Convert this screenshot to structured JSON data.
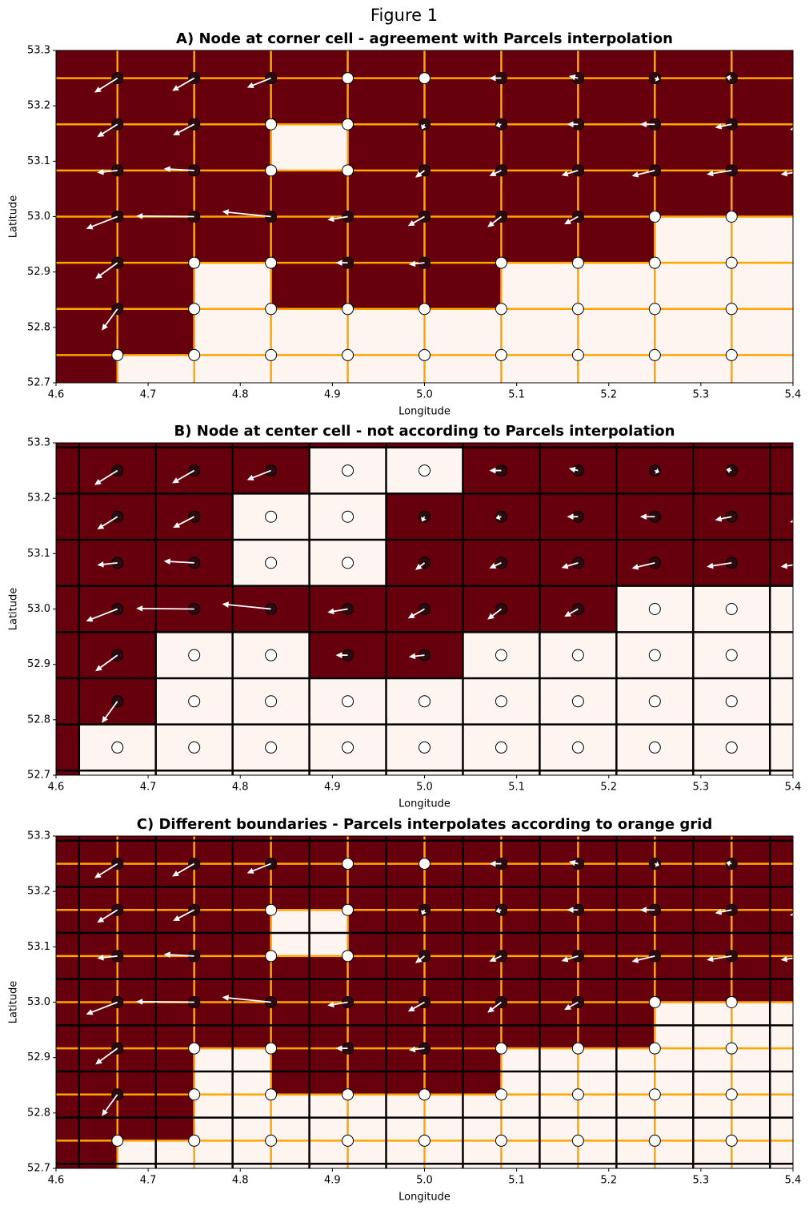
{
  "suptitle": "Figure 1",
  "field": {
    "lon": [
      4.583333,
      4.666667,
      4.75,
      4.833333,
      4.916667,
      5.0,
      5.083333,
      5.166667,
      5.25,
      5.333333,
      5.416667
    ],
    "lat": [
      52.666667,
      52.75,
      52.833333,
      52.916667,
      53.0,
      53.083333,
      53.166667,
      53.25,
      53.333333
    ],
    "land": [
      [
        0,
        1,
        1,
        1,
        1,
        1,
        1,
        1,
        1,
        1,
        1
      ],
      [
        0,
        1,
        1,
        1,
        1,
        1,
        1,
        1,
        1,
        1,
        1
      ],
      [
        0,
        0,
        1,
        1,
        1,
        1,
        1,
        1,
        1,
        1,
        1
      ],
      [
        0,
        0,
        1,
        1,
        0,
        0,
        1,
        1,
        1,
        1,
        1
      ],
      [
        0,
        0,
        0,
        0,
        0,
        0,
        0,
        0,
        1,
        1,
        1
      ],
      [
        0,
        0,
        0,
        1,
        1,
        0,
        0,
        0,
        0,
        0,
        0
      ],
      [
        0,
        0,
        0,
        1,
        1,
        0,
        0,
        0,
        0,
        0,
        0
      ],
      [
        0,
        0,
        0,
        0,
        1,
        1,
        0,
        0,
        0,
        0,
        0
      ],
      [
        0,
        0,
        0,
        0,
        0,
        0,
        0,
        0,
        0,
        0,
        0
      ]
    ],
    "u": [
      [
        0,
        0,
        0,
        0,
        0,
        0,
        0,
        0,
        0,
        0,
        0
      ],
      [
        0,
        0,
        0,
        0,
        0,
        0,
        0,
        0,
        0,
        0,
        0
      ],
      [
        0,
        -0.017,
        0,
        0,
        0,
        0,
        0,
        0,
        0,
        0,
        0
      ],
      [
        0,
        -0.024,
        0,
        0,
        -0.013,
        -0.017,
        0,
        0,
        0,
        0,
        0
      ],
      [
        0,
        -0.034,
        -0.063,
        -0.053,
        -0.022,
        -0.018,
        -0.015,
        -0.015,
        0,
        0,
        0
      ],
      [
        0,
        -0.022,
        -0.033,
        0,
        0,
        -0.01,
        -0.013,
        -0.018,
        -0.025,
        -0.027,
        -0.03
      ],
      [
        0,
        -0.022,
        -0.023,
        0,
        0,
        -0.003,
        -0.006,
        -0.012,
        -0.016,
        -0.018,
        -0.02
      ],
      [
        0,
        -0.025,
        -0.024,
        -0.026,
        0,
        0,
        -0.013,
        -0.01,
        0.005,
        -0.006,
        -0.005
      ],
      [
        0,
        0,
        0,
        0,
        0,
        0,
        0,
        0,
        0,
        0,
        0
      ]
    ],
    "v": [
      [
        0,
        0,
        0,
        0,
        0,
        0,
        0,
        0,
        0,
        0,
        0
      ],
      [
        0,
        0,
        0,
        0,
        0,
        0,
        0,
        0,
        0,
        0,
        0
      ],
      [
        0,
        -0.039,
        0,
        0,
        0,
        0,
        0,
        0,
        0,
        0,
        0
      ],
      [
        0,
        -0.029,
        0,
        0,
        0,
        -0.003,
        0,
        0,
        0,
        0,
        0
      ],
      [
        0,
        -0.022,
        0.001,
        0.009,
        -0.006,
        -0.017,
        -0.019,
        -0.014,
        0,
        0,
        0
      ],
      [
        0,
        -0.004,
        0.003,
        0,
        0,
        -0.013,
        -0.01,
        -0.009,
        -0.01,
        -0.007,
        -0.007
      ],
      [
        0,
        -0.023,
        -0.02,
        0,
        0,
        -0.009,
        -0.003,
        0,
        0,
        -0.006,
        -0.01
      ],
      [
        0,
        -0.026,
        -0.023,
        -0.017,
        0,
        0,
        0,
        0.004,
        -0.003,
        0.002,
        0
      ],
      [
        0,
        0,
        0,
        0,
        0,
        0,
        0,
        0,
        0,
        0,
        0
      ]
    ],
    "colors": {
      "ocean": "#67000d",
      "land": "#fff5f0",
      "ocean_node": "#2d0a0f",
      "land_node": "#ffffff",
      "arrow": "#ffffff",
      "corner_grid": "orange",
      "center_grid": "black"
    }
  },
  "chart_data": [
    {
      "type": "mesh",
      "title": "A) Node at corner cell - agreement with Parcels interpolation",
      "xlabel": "Longitude",
      "ylabel": "Latitude",
      "cells": "corner",
      "grid_lines": [
        "corner"
      ],
      "xlim": [
        4.6,
        5.4
      ],
      "ylim": [
        52.7,
        53.3
      ],
      "xticks": [
        4.6,
        4.7,
        4.8,
        4.9,
        {
          "value": 5,
          "label": "5.0"
        },
        5.1,
        5.2,
        5.3,
        5.4
      ],
      "yticks": [
        52.7,
        52.8,
        52.9,
        {
          "value": 53,
          "label": "53.0"
        },
        53.1,
        53.2,
        53.3
      ]
    },
    {
      "type": "mesh",
      "title": "B) Node at center cell - not according to Parcels interpolation",
      "xlabel": "Longitude",
      "ylabel": "Latitude",
      "cells": "center",
      "grid_lines": [
        "center"
      ],
      "xlim": [
        4.6,
        5.4
      ],
      "ylim": [
        52.7,
        53.3
      ],
      "xticks": [
        4.6,
        4.7,
        4.8,
        4.9,
        {
          "value": 5,
          "label": "5.0"
        },
        5.1,
        5.2,
        5.3,
        5.4
      ],
      "yticks": [
        52.7,
        52.8,
        52.9,
        {
          "value": 53,
          "label": "53.0"
        },
        53.1,
        53.2,
        53.3
      ]
    },
    {
      "type": "mesh",
      "title": "C) Different boundaries - Parcels interpolates according to orange grid",
      "xlabel": "Longitude",
      "ylabel": "Latitude",
      "cells": "corner",
      "grid_lines": [
        "corner",
        "center"
      ],
      "xlim": [
        4.6,
        5.4
      ],
      "ylim": [
        52.7,
        53.3
      ],
      "xticks": [
        4.6,
        4.7,
        4.8,
        4.9,
        {
          "value": 5,
          "label": "5.0"
        },
        5.1,
        5.2,
        5.3,
        5.4
      ],
      "yticks": [
        52.7,
        52.8,
        52.9,
        {
          "value": 53,
          "label": "53.0"
        },
        53.1,
        53.2,
        53.3
      ]
    }
  ]
}
